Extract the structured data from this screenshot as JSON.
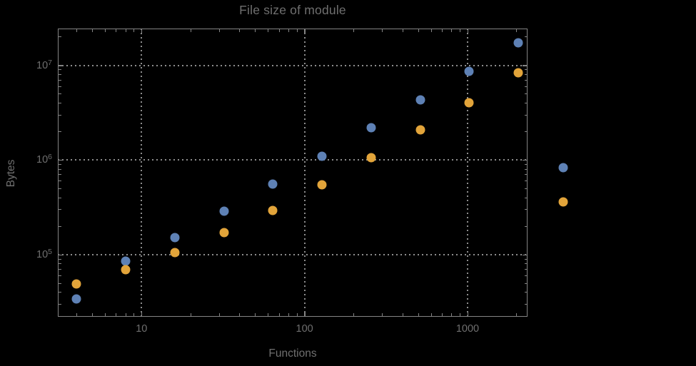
{
  "title": "File size of module",
  "colors": {
    "background": "#000000",
    "frame": "#848484",
    "gridline": "#8d8d8d",
    "text": "#6f6f6f",
    "series1": "#5E81B5",
    "series2": "#E2A43A"
  },
  "chart_data": {
    "type": "scatter",
    "title": "File size of module",
    "xlabel": "Functions",
    "ylabel": "Bytes",
    "xscale": "log",
    "yscale": "log",
    "xlim": [
      3.1,
      2330
    ],
    "ylim": [
      22500,
      24500000
    ],
    "grid": "dotted-at-major-ticks",
    "legend": "none",
    "x_major_ticks": [
      10,
      100,
      1000
    ],
    "x_major_labels": [
      "10",
      "100",
      "1000"
    ],
    "x_minor_ticks": [
      4,
      5,
      6,
      7,
      8,
      9,
      20,
      30,
      40,
      50,
      60,
      70,
      80,
      90,
      200,
      300,
      400,
      500,
      600,
      700,
      800,
      900,
      2000
    ],
    "y_major_ticks": [
      100000,
      1000000,
      10000000
    ],
    "y_major_labels": [
      {
        "base": "10",
        "exp": "5"
      },
      {
        "base": "10",
        "exp": "6"
      },
      {
        "base": "10",
        "exp": "7"
      }
    ],
    "y_minor_ticks": [
      30000,
      40000,
      50000,
      60000,
      70000,
      80000,
      90000,
      200000,
      300000,
      400000,
      500000,
      600000,
      700000,
      800000,
      900000,
      2000000,
      3000000,
      4000000,
      5000000,
      6000000,
      7000000,
      8000000,
      9000000,
      20000000
    ],
    "series": [
      {
        "name": "series-1",
        "color": "#5E81B5",
        "points": [
          [
            4,
            34000
          ],
          [
            8,
            86000
          ],
          [
            16,
            151000
          ],
          [
            32,
            287000
          ],
          [
            64,
            560000
          ],
          [
            128,
            1100000
          ],
          [
            256,
            2190000
          ],
          [
            512,
            4340000
          ],
          [
            1024,
            8650000
          ],
          [
            2048,
            17400000
          ],
          [
            3873,
            826000
          ]
        ]
      },
      {
        "name": "series-2",
        "color": "#E2A43A",
        "points": [
          [
            4,
            49000
          ],
          [
            8,
            70000
          ],
          [
            16,
            106000
          ],
          [
            32,
            173000
          ],
          [
            64,
            296000
          ],
          [
            128,
            544000
          ],
          [
            256,
            1070000
          ],
          [
            512,
            2090000
          ],
          [
            1024,
            4070000
          ],
          [
            2048,
            8310000
          ],
          [
            3873,
            362000
          ]
        ]
      }
    ]
  }
}
